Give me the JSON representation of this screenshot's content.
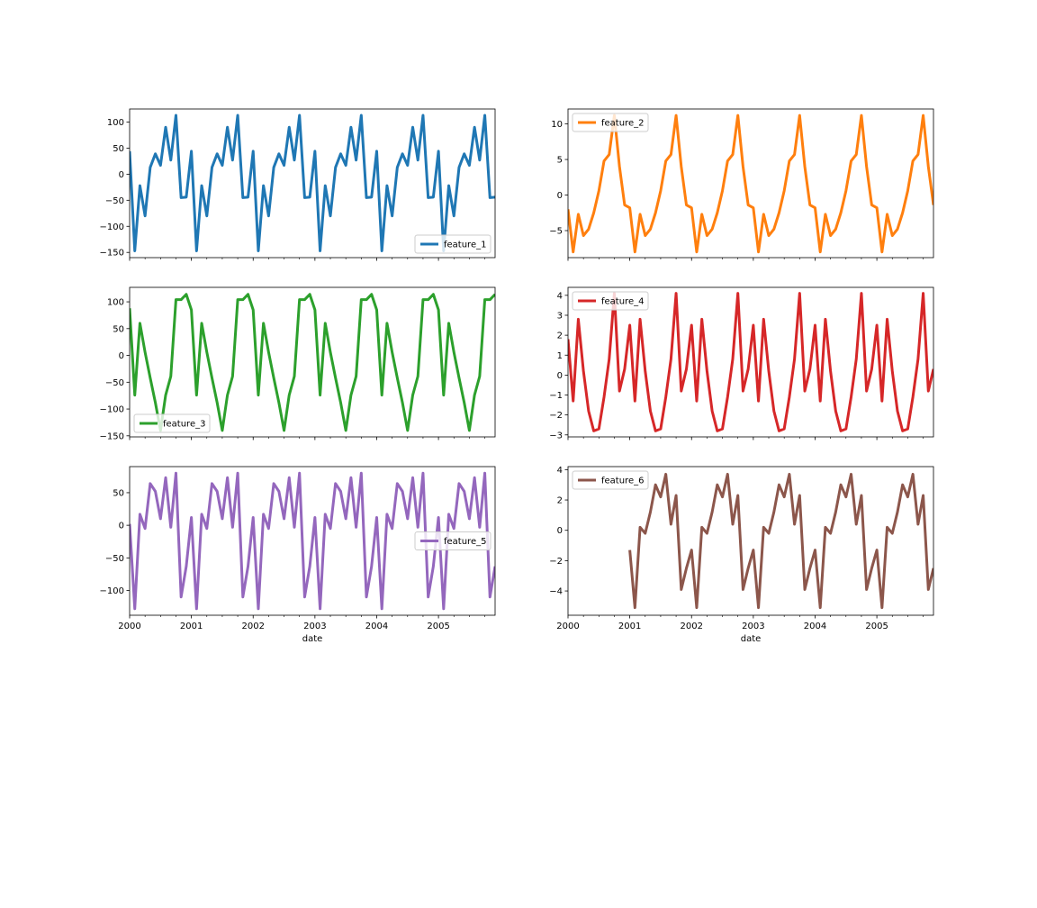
{
  "figure": {
    "xlabel": "date",
    "x_ticks": [
      "2000",
      "2001",
      "2002",
      "2003",
      "2004",
      "2005"
    ]
  },
  "chart_data": [
    {
      "type": "line",
      "series": [
        {
          "name": "feature_1",
          "color": "#1f77b4",
          "x": [
            "2000-01",
            "2000-02",
            "2000-03",
            "2000-04",
            "2000-05",
            "2000-06",
            "2000-07",
            "2000-08",
            "2000-09",
            "2000-10",
            "2000-11",
            "2000-12",
            "2001-01",
            "2001-02",
            "2001-03",
            "2001-04",
            "2001-05",
            "2001-06",
            "2001-07",
            "2001-08",
            "2001-09",
            "2001-10",
            "2001-11",
            "2001-12",
            "2002-01",
            "2002-02",
            "2002-03",
            "2002-04",
            "2002-05",
            "2002-06",
            "2002-07",
            "2002-08",
            "2002-09",
            "2002-10",
            "2002-11",
            "2002-12",
            "2003-01",
            "2003-02",
            "2003-03",
            "2003-04",
            "2003-05",
            "2003-06",
            "2003-07",
            "2003-08",
            "2003-09",
            "2003-10",
            "2003-11",
            "2003-12",
            "2004-01",
            "2004-02",
            "2004-03",
            "2004-04",
            "2004-05",
            "2004-06",
            "2004-07",
            "2004-08",
            "2004-09",
            "2004-10",
            "2004-11",
            "2004-12",
            "2005-01",
            "2005-02",
            "2005-03",
            "2005-04",
            "2005-05",
            "2005-06",
            "2005-07",
            "2005-08",
            "2005-09",
            "2005-10",
            "2005-11",
            "2005-12"
          ],
          "values": [
            44,
            -147,
            -22,
            -80,
            13,
            39,
            17,
            90,
            27,
            113,
            -45,
            -44,
            44,
            -147,
            -22,
            -80,
            13,
            39,
            17,
            90,
            27,
            113,
            -45,
            -44,
            44,
            -147,
            -22,
            -80,
            13,
            39,
            17,
            90,
            27,
            113,
            -45,
            -44,
            44,
            -147,
            -22,
            -80,
            13,
            39,
            17,
            90,
            27,
            113,
            -45,
            -44,
            44,
            -147,
            -22,
            -80,
            13,
            39,
            17,
            90,
            27,
            113,
            -45,
            -44,
            44,
            -147,
            -22,
            -80,
            13,
            39,
            17,
            90,
            27,
            113,
            -45,
            -44
          ]
        }
      ],
      "ylim": [
        -160,
        125
      ],
      "y_ticks": [
        -150,
        -100,
        -50,
        0,
        50,
        100
      ],
      "legend_position": "lower-right"
    },
    {
      "type": "line",
      "series": [
        {
          "name": "feature_2",
          "color": "#ff7f0e",
          "x": [
            "2000-01",
            "2000-02",
            "2000-03",
            "2000-04",
            "2000-05",
            "2000-06",
            "2000-07",
            "2000-08",
            "2000-09",
            "2000-10",
            "2000-11",
            "2000-12",
            "2001-01",
            "2001-02",
            "2001-03",
            "2001-04",
            "2001-05",
            "2001-06",
            "2001-07",
            "2001-08",
            "2001-09",
            "2001-10",
            "2001-11",
            "2001-12",
            "2002-01",
            "2002-02",
            "2002-03",
            "2002-04",
            "2002-05",
            "2002-06",
            "2002-07",
            "2002-08",
            "2002-09",
            "2002-10",
            "2002-11",
            "2002-12",
            "2003-01",
            "2003-02",
            "2003-03",
            "2003-04",
            "2003-05",
            "2003-06",
            "2003-07",
            "2003-08",
            "2003-09",
            "2003-10",
            "2003-11",
            "2003-12",
            "2004-01",
            "2004-02",
            "2004-03",
            "2004-04",
            "2004-05",
            "2004-06",
            "2004-07",
            "2004-08",
            "2004-09",
            "2004-10",
            "2004-11",
            "2004-12",
            "2005-01",
            "2005-02",
            "2005-03",
            "2005-04",
            "2005-05",
            "2005-06",
            "2005-07",
            "2005-08",
            "2005-09",
            "2005-10",
            "2005-11",
            "2005-12"
          ],
          "values": [
            -2.0,
            -8.0,
            -2.7,
            -5.7,
            -4.8,
            -2.5,
            0.6,
            4.8,
            5.7,
            11.2,
            4.0,
            -1.4,
            -1.8,
            -8.0,
            -2.7,
            -5.7,
            -4.8,
            -2.5,
            0.6,
            4.8,
            5.7,
            11.2,
            4.0,
            -1.4,
            -1.8,
            -8.0,
            -2.7,
            -5.7,
            -4.8,
            -2.5,
            0.6,
            4.8,
            5.7,
            11.2,
            4.0,
            -1.4,
            -1.8,
            -8.0,
            -2.7,
            -5.7,
            -4.8,
            -2.5,
            0.6,
            4.8,
            5.7,
            11.2,
            4.0,
            -1.4,
            -1.8,
            -8.0,
            -2.7,
            -5.7,
            -4.8,
            -2.5,
            0.6,
            4.8,
            5.7,
            11.2,
            4.0,
            -1.4,
            -1.8,
            -8.0,
            -2.7,
            -5.7,
            -4.8,
            -2.5,
            0.6,
            4.8,
            5.7,
            11.2,
            4.0,
            -1.4
          ]
        }
      ],
      "ylim": [
        -8.8,
        12.1
      ],
      "y_ticks": [
        -5,
        0,
        5,
        10
      ],
      "legend_position": "upper-left"
    },
    {
      "type": "line",
      "series": [
        {
          "name": "feature_3",
          "color": "#2ca02c",
          "x": [
            "2000-01",
            "2000-02",
            "2000-03",
            "2000-04",
            "2000-05",
            "2000-06",
            "2000-07",
            "2000-08",
            "2000-09",
            "2000-10",
            "2000-11",
            "2000-12",
            "2001-01",
            "2001-02",
            "2001-03",
            "2001-04",
            "2001-05",
            "2001-06",
            "2001-07",
            "2001-08",
            "2001-09",
            "2001-10",
            "2001-11",
            "2001-12",
            "2002-01",
            "2002-02",
            "2002-03",
            "2002-04",
            "2002-05",
            "2002-06",
            "2002-07",
            "2002-08",
            "2002-09",
            "2002-10",
            "2002-11",
            "2002-12",
            "2003-01",
            "2003-02",
            "2003-03",
            "2003-04",
            "2003-05",
            "2003-06",
            "2003-07",
            "2003-08",
            "2003-09",
            "2003-10",
            "2003-11",
            "2003-12",
            "2004-01",
            "2004-02",
            "2004-03",
            "2004-04",
            "2004-05",
            "2004-06",
            "2004-07",
            "2004-08",
            "2004-09",
            "2004-10",
            "2004-11",
            "2004-12",
            "2005-01",
            "2005-02",
            "2005-03",
            "2005-04",
            "2005-05",
            "2005-06",
            "2005-07",
            "2005-08",
            "2005-09",
            "2005-10",
            "2005-11",
            "2005-12"
          ],
          "values": [
            88,
            -74,
            60,
            6,
            -42,
            -88,
            -140,
            -74,
            -39,
            104,
            104,
            114,
            85,
            -74,
            60,
            6,
            -42,
            -88,
            -140,
            -74,
            -39,
            104,
            104,
            114,
            85,
            -74,
            60,
            6,
            -42,
            -88,
            -140,
            -74,
            -39,
            104,
            104,
            114,
            85,
            -74,
            60,
            6,
            -42,
            -88,
            -140,
            -74,
            -39,
            104,
            104,
            114,
            85,
            -74,
            60,
            6,
            -42,
            -88,
            -140,
            -74,
            -39,
            104,
            104,
            114,
            85,
            -74,
            60,
            6,
            -42,
            -88,
            -140,
            -74,
            -39,
            104,
            104,
            114
          ]
        }
      ],
      "ylim": [
        -152,
        127
      ],
      "y_ticks": [
        -150,
        -100,
        -50,
        0,
        50,
        100
      ],
      "legend_position": "lower-left"
    },
    {
      "type": "line",
      "series": [
        {
          "name": "feature_4",
          "color": "#d62728",
          "x": [
            "2000-01",
            "2000-02",
            "2000-03",
            "2000-04",
            "2000-05",
            "2000-06",
            "2000-07",
            "2000-08",
            "2000-09",
            "2000-10",
            "2000-11",
            "2000-12",
            "2001-01",
            "2001-02",
            "2001-03",
            "2001-04",
            "2001-05",
            "2001-06",
            "2001-07",
            "2001-08",
            "2001-09",
            "2001-10",
            "2001-11",
            "2001-12",
            "2002-01",
            "2002-02",
            "2002-03",
            "2002-04",
            "2002-05",
            "2002-06",
            "2002-07",
            "2002-08",
            "2002-09",
            "2002-10",
            "2002-11",
            "2002-12",
            "2003-01",
            "2003-02",
            "2003-03",
            "2003-04",
            "2003-05",
            "2003-06",
            "2003-07",
            "2003-08",
            "2003-09",
            "2003-10",
            "2003-11",
            "2003-12",
            "2004-01",
            "2004-02",
            "2004-03",
            "2004-04",
            "2004-05",
            "2004-06",
            "2004-07",
            "2004-08",
            "2004-09",
            "2004-10",
            "2004-11",
            "2004-12",
            "2005-01",
            "2005-02",
            "2005-03",
            "2005-04",
            "2005-05",
            "2005-06",
            "2005-07",
            "2005-08",
            "2005-09",
            "2005-10",
            "2005-11",
            "2005-12"
          ],
          "values": [
            1.8,
            -1.3,
            2.8,
            0.2,
            -1.8,
            -2.8,
            -2.7,
            -1.1,
            0.8,
            4.1,
            -0.8,
            0.3,
            2.5,
            -1.3,
            2.8,
            0.2,
            -1.8,
            -2.8,
            -2.7,
            -1.1,
            0.8,
            4.1,
            -0.8,
            0.3,
            2.5,
            -1.3,
            2.8,
            0.2,
            -1.8,
            -2.8,
            -2.7,
            -1.1,
            0.8,
            4.1,
            -0.8,
            0.3,
            2.5,
            -1.3,
            2.8,
            0.2,
            -1.8,
            -2.8,
            -2.7,
            -1.1,
            0.8,
            4.1,
            -0.8,
            0.3,
            2.5,
            -1.3,
            2.8,
            0.2,
            -1.8,
            -2.8,
            -2.7,
            -1.1,
            0.8,
            4.1,
            -0.8,
            0.3,
            2.5,
            -1.3,
            2.8,
            0.2,
            -1.8,
            -2.8,
            -2.7,
            -1.1,
            0.8,
            4.1,
            -0.8,
            0.3
          ]
        }
      ],
      "ylim": [
        -3.1,
        4.4
      ],
      "y_ticks": [
        -3,
        -2,
        -1,
        0,
        1,
        2,
        3,
        4
      ],
      "legend_position": "upper-left"
    },
    {
      "type": "line",
      "series": [
        {
          "name": "feature_5",
          "color": "#9467bd",
          "x": [
            "2000-01",
            "2000-02",
            "2000-03",
            "2000-04",
            "2000-05",
            "2000-06",
            "2000-07",
            "2000-08",
            "2000-09",
            "2000-10",
            "2000-11",
            "2000-12",
            "2001-01",
            "2001-02",
            "2001-03",
            "2001-04",
            "2001-05",
            "2001-06",
            "2001-07",
            "2001-08",
            "2001-09",
            "2001-10",
            "2001-11",
            "2001-12",
            "2002-01",
            "2002-02",
            "2002-03",
            "2002-04",
            "2002-05",
            "2002-06",
            "2002-07",
            "2002-08",
            "2002-09",
            "2002-10",
            "2002-11",
            "2002-12",
            "2003-01",
            "2003-02",
            "2003-03",
            "2003-04",
            "2003-05",
            "2003-06",
            "2003-07",
            "2003-08",
            "2003-09",
            "2003-10",
            "2003-11",
            "2003-12",
            "2004-01",
            "2004-02",
            "2004-03",
            "2004-04",
            "2004-05",
            "2004-06",
            "2004-07",
            "2004-08",
            "2004-09",
            "2004-10",
            "2004-11",
            "2004-12",
            "2005-01",
            "2005-02",
            "2005-03",
            "2005-04",
            "2005-05",
            "2005-06",
            "2005-07",
            "2005-08",
            "2005-09",
            "2005-10",
            "2005-11",
            "2005-12"
          ],
          "values": [
            2,
            -128,
            17,
            -5,
            64,
            52,
            10,
            73,
            -3,
            80,
            -110,
            -63,
            12,
            -128,
            17,
            -5,
            64,
            52,
            10,
            73,
            -3,
            80,
            -110,
            -63,
            12,
            -128,
            17,
            -5,
            64,
            52,
            10,
            73,
            -3,
            80,
            -110,
            -63,
            12,
            -128,
            17,
            -5,
            64,
            52,
            10,
            73,
            -3,
            80,
            -110,
            -63,
            12,
            -128,
            17,
            -5,
            64,
            52,
            10,
            73,
            -3,
            80,
            -110,
            -63,
            12,
            -128,
            17,
            -5,
            64,
            52,
            10,
            73,
            -3,
            80,
            -110,
            -63
          ]
        }
      ],
      "ylim": [
        -138,
        90
      ],
      "y_ticks": [
        -100,
        -50,
        0,
        50
      ],
      "legend_position": "center-right"
    },
    {
      "type": "line",
      "series": [
        {
          "name": "feature_6",
          "color": "#8c564b",
          "x": [
            "2000-01",
            "2000-02",
            "2000-03",
            "2000-04",
            "2000-05",
            "2000-06",
            "2000-07",
            "2000-08",
            "2000-09",
            "2000-10",
            "2000-11",
            "2000-12",
            "2001-01",
            "2001-02",
            "2001-03",
            "2001-04",
            "2001-05",
            "2001-06",
            "2001-07",
            "2001-08",
            "2001-09",
            "2001-10",
            "2001-11",
            "2001-12",
            "2002-01",
            "2002-02",
            "2002-03",
            "2002-04",
            "2002-05",
            "2002-06",
            "2002-07",
            "2002-08",
            "2002-09",
            "2002-10",
            "2002-11",
            "2002-12",
            "2003-01",
            "2003-02",
            "2003-03",
            "2003-04",
            "2003-05",
            "2003-06",
            "2003-07",
            "2003-08",
            "2003-09",
            "2003-10",
            "2003-11",
            "2003-12",
            "2004-01",
            "2004-02",
            "2004-03",
            "2004-04",
            "2004-05",
            "2004-06",
            "2004-07",
            "2004-08",
            "2004-09",
            "2004-10",
            "2004-11",
            "2004-12",
            "2005-01",
            "2005-02",
            "2005-03",
            "2005-04",
            "2005-05",
            "2005-06",
            "2005-07",
            "2005-08",
            "2005-09",
            "2005-10",
            "2005-11",
            "2005-12"
          ],
          "values": [
            null,
            null,
            null,
            null,
            null,
            null,
            null,
            null,
            null,
            null,
            null,
            null,
            -1.3,
            -5.1,
            0.2,
            -0.2,
            1.2,
            3.0,
            2.2,
            3.7,
            0.4,
            2.3,
            -3.9,
            -2.5,
            -1.3,
            -5.1,
            0.2,
            -0.2,
            1.2,
            3.0,
            2.2,
            3.7,
            0.4,
            2.3,
            -3.9,
            -2.5,
            -1.3,
            -5.1,
            0.2,
            -0.2,
            1.2,
            3.0,
            2.2,
            3.7,
            0.4,
            2.3,
            -3.9,
            -2.5,
            -1.3,
            -5.1,
            0.2,
            -0.2,
            1.2,
            3.0,
            2.2,
            3.7,
            0.4,
            2.3,
            -3.9,
            -2.5,
            -1.3,
            -5.1,
            0.2,
            -0.2,
            1.2,
            3.0,
            2.2,
            3.7,
            0.4,
            2.3,
            -3.9,
            -2.5
          ]
        }
      ],
      "ylim": [
        -5.6,
        4.2
      ],
      "y_ticks": [
        -4,
        -2,
        0,
        2,
        4
      ],
      "legend_position": "upper-left"
    }
  ]
}
